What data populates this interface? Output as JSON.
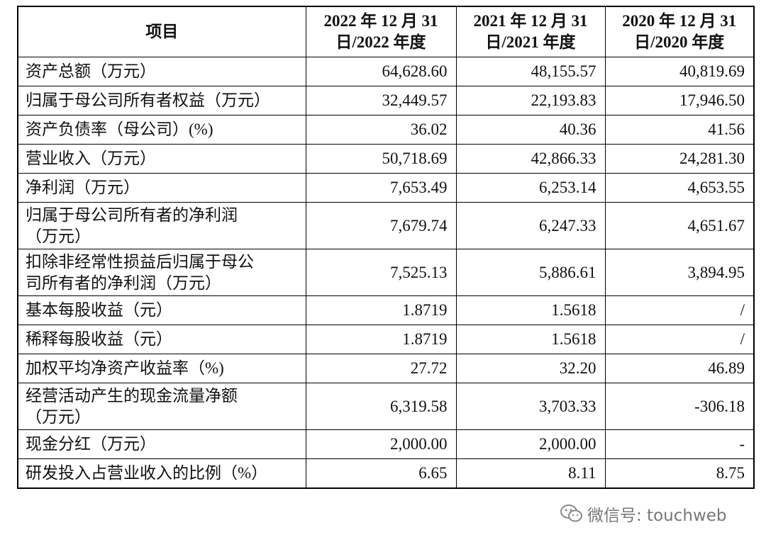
{
  "table": {
    "header": [
      [
        "项目"
      ],
      [
        "2022 年 12 月 31",
        "日/2022 年度"
      ],
      [
        "2021 年 12 月 31",
        "日/2021 年度"
      ],
      [
        "2020 年 12 月 31",
        "日/2020 年度"
      ]
    ],
    "rows": [
      {
        "label": [
          "资产总额（万元）"
        ],
        "values": [
          "64,628.60",
          "48,155.57",
          "40,819.69"
        ]
      },
      {
        "label": [
          "归属于母公司所有者权益（万元）"
        ],
        "values": [
          "32,449.57",
          "22,193.83",
          "17,946.50"
        ]
      },
      {
        "label": [
          "资产负债率（母公司）(%)"
        ],
        "values": [
          "36.02",
          "40.36",
          "41.56"
        ]
      },
      {
        "label": [
          "营业收入（万元）"
        ],
        "values": [
          "50,718.69",
          "42,866.33",
          "24,281.30"
        ]
      },
      {
        "label": [
          "净利润（万元）"
        ],
        "values": [
          "7,653.49",
          "6,253.14",
          "4,653.55"
        ]
      },
      {
        "label": [
          "归属于母公司所有者的净利润",
          "（万元）"
        ],
        "values": [
          "7,679.74",
          "6,247.33",
          "4,651.67"
        ]
      },
      {
        "label": [
          "扣除非经常性损益后归属于母公",
          "司所有者的净利润（万元）"
        ],
        "values": [
          "7,525.13",
          "5,886.61",
          "3,894.95"
        ]
      },
      {
        "label": [
          "基本每股收益（元）"
        ],
        "values": [
          "1.8719",
          "1.5618",
          "/"
        ]
      },
      {
        "label": [
          "稀释每股收益（元）"
        ],
        "values": [
          "1.8719",
          "1.5618",
          "/"
        ]
      },
      {
        "label": [
          "加权平均净资产收益率（%)"
        ],
        "values": [
          "27.72",
          "32.20",
          "46.89"
        ]
      },
      {
        "label": [
          "经营活动产生的现金流量净额",
          "（万元）"
        ],
        "values": [
          "6,319.58",
          "3,703.33",
          "-306.18"
        ]
      },
      {
        "label": [
          "现金分红（万元）"
        ],
        "values": [
          "2,000.00",
          "2,000.00",
          "-"
        ]
      },
      {
        "label": [
          "研发投入占营业收入的比例（%）"
        ],
        "values": [
          "6.65",
          "8.11",
          "8.75"
        ]
      }
    ]
  },
  "watermark": "微信号: touchweb"
}
